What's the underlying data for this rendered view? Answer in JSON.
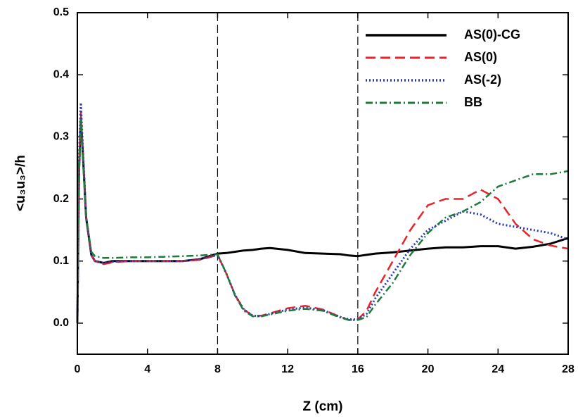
{
  "chart_data": {
    "type": "line",
    "x_label": "Z (cm)",
    "y_label": "<u₃u₃>/h",
    "x": [
      0,
      0.1,
      0.2,
      0.3,
      0.5,
      0.8,
      1,
      1.5,
      2,
      3,
      4,
      5,
      6,
      7,
      8,
      8.5,
      9,
      9.5,
      10,
      10.5,
      11,
      12,
      13,
      14,
      15,
      15.5,
      16,
      16.5,
      17,
      18,
      19,
      20,
      21,
      22,
      23,
      24,
      25,
      26,
      27,
      28
    ],
    "series": [
      {
        "name": "AS(0)-CG",
        "color": "#000000",
        "dash": "",
        "width": 3,
        "values": [
          0,
          0.25,
          0.33,
          0.28,
          0.17,
          0.11,
          0.1,
          0.097,
          0.1,
          0.1,
          0.1,
          0.1,
          0.1,
          0.103,
          0.112,
          0.113,
          0.115,
          0.117,
          0.118,
          0.12,
          0.121,
          0.118,
          0.113,
          0.112,
          0.111,
          0.109,
          0.108,
          0.11,
          0.112,
          0.114,
          0.117,
          0.12,
          0.122,
          0.122,
          0.124,
          0.124,
          0.12,
          0.123,
          0.128,
          0.137
        ]
      },
      {
        "name": "AS(0)",
        "color": "#e8232b",
        "dash": "14 7",
        "width": 2.5,
        "values": [
          0,
          0.26,
          0.34,
          0.28,
          0.17,
          0.11,
          0.1,
          0.095,
          0.098,
          0.1,
          0.1,
          0.1,
          0.1,
          0.102,
          0.11,
          0.08,
          0.045,
          0.022,
          0.012,
          0.012,
          0.016,
          0.024,
          0.028,
          0.022,
          0.01,
          0.005,
          0.006,
          0.02,
          0.05,
          0.1,
          0.15,
          0.19,
          0.2,
          0.2,
          0.215,
          0.2,
          0.16,
          0.135,
          0.125,
          0.12
        ]
      },
      {
        "name": "AS(-2)",
        "color": "#2a3bb0",
        "dash": "2 3",
        "width": 3,
        "values": [
          0,
          0.27,
          0.355,
          0.29,
          0.17,
          0.11,
          0.1,
          0.097,
          0.099,
          0.1,
          0.1,
          0.1,
          0.1,
          0.103,
          0.11,
          0.08,
          0.045,
          0.022,
          0.012,
          0.011,
          0.015,
          0.022,
          0.025,
          0.021,
          0.01,
          0.006,
          0.006,
          0.015,
          0.04,
          0.08,
          0.12,
          0.15,
          0.165,
          0.18,
          0.175,
          0.16,
          0.155,
          0.15,
          0.145,
          0.135
        ]
      },
      {
        "name": "BB",
        "color": "#1e7a3a",
        "dash": "10 4 2 4",
        "width": 2.5,
        "values": [
          0,
          0.24,
          0.33,
          0.27,
          0.17,
          0.115,
          0.108,
          0.105,
          0.105,
          0.106,
          0.106,
          0.107,
          0.108,
          0.109,
          0.111,
          0.08,
          0.044,
          0.02,
          0.011,
          0.011,
          0.014,
          0.02,
          0.023,
          0.02,
          0.009,
          0.005,
          0.005,
          0.01,
          0.03,
          0.065,
          0.11,
          0.145,
          0.17,
          0.18,
          0.195,
          0.22,
          0.23,
          0.24,
          0.24,
          0.245
        ]
      }
    ],
    "vlines": [
      8,
      16
    ],
    "xlim": [
      0,
      28
    ],
    "xticks": [
      0,
      4,
      8,
      12,
      16,
      20,
      24,
      28
    ],
    "ylim": [
      -0.05,
      0.5
    ],
    "yticks": [
      {
        "value": 0,
        "label": "0.0"
      },
      0.1,
      0.2,
      0.3,
      0.4,
      0.5
    ],
    "legend": "upper right"
  }
}
